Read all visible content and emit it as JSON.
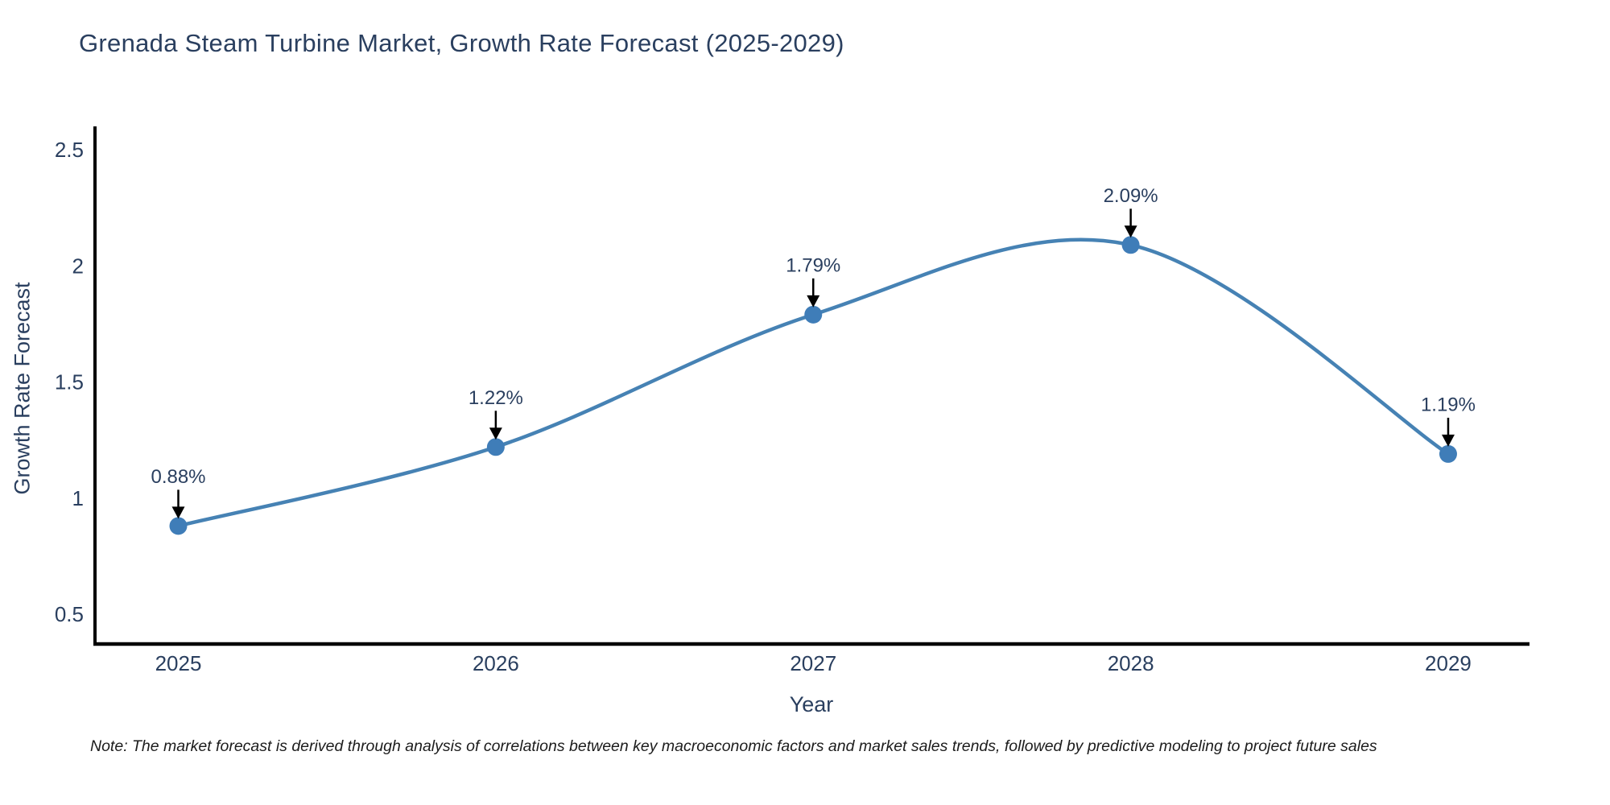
{
  "header": {
    "title": "Grenada Steam Turbine Market, Growth Rate Forecast (2025-2029)"
  },
  "chart_data": {
    "type": "line",
    "title": "Grenada Steam Turbine Market, Growth Rate Forecast (2025-2029)",
    "categories": [
      "2025",
      "2026",
      "2027",
      "2028",
      "2029"
    ],
    "series": [
      {
        "name": "Growth Rate Forecast",
        "values": [
          0.88,
          1.22,
          1.79,
          2.09,
          1.19
        ],
        "point_labels": [
          "0.88%",
          "1.22%",
          "1.79%",
          "2.09%",
          "1.19%"
        ]
      }
    ],
    "xlabel": "Year",
    "ylabel": "Growth Rate Forecast",
    "yticks": [
      0.5,
      1,
      1.5,
      2,
      2.5
    ],
    "ylim": [
      0.36,
      2.6
    ],
    "line_shape": "spline",
    "grid": false,
    "legend_position": "none",
    "colors": {
      "line": "#4682b4",
      "marker": "#3f7db8",
      "axis": "#000000",
      "text": "#2a3f5f",
      "annotation_arrow": "#000000"
    }
  },
  "footnote": {
    "text": "Note: The market forecast is derived through analysis of correlations between key macroeconomic factors and market sales trends, followed by predictive modeling to project future sales"
  }
}
